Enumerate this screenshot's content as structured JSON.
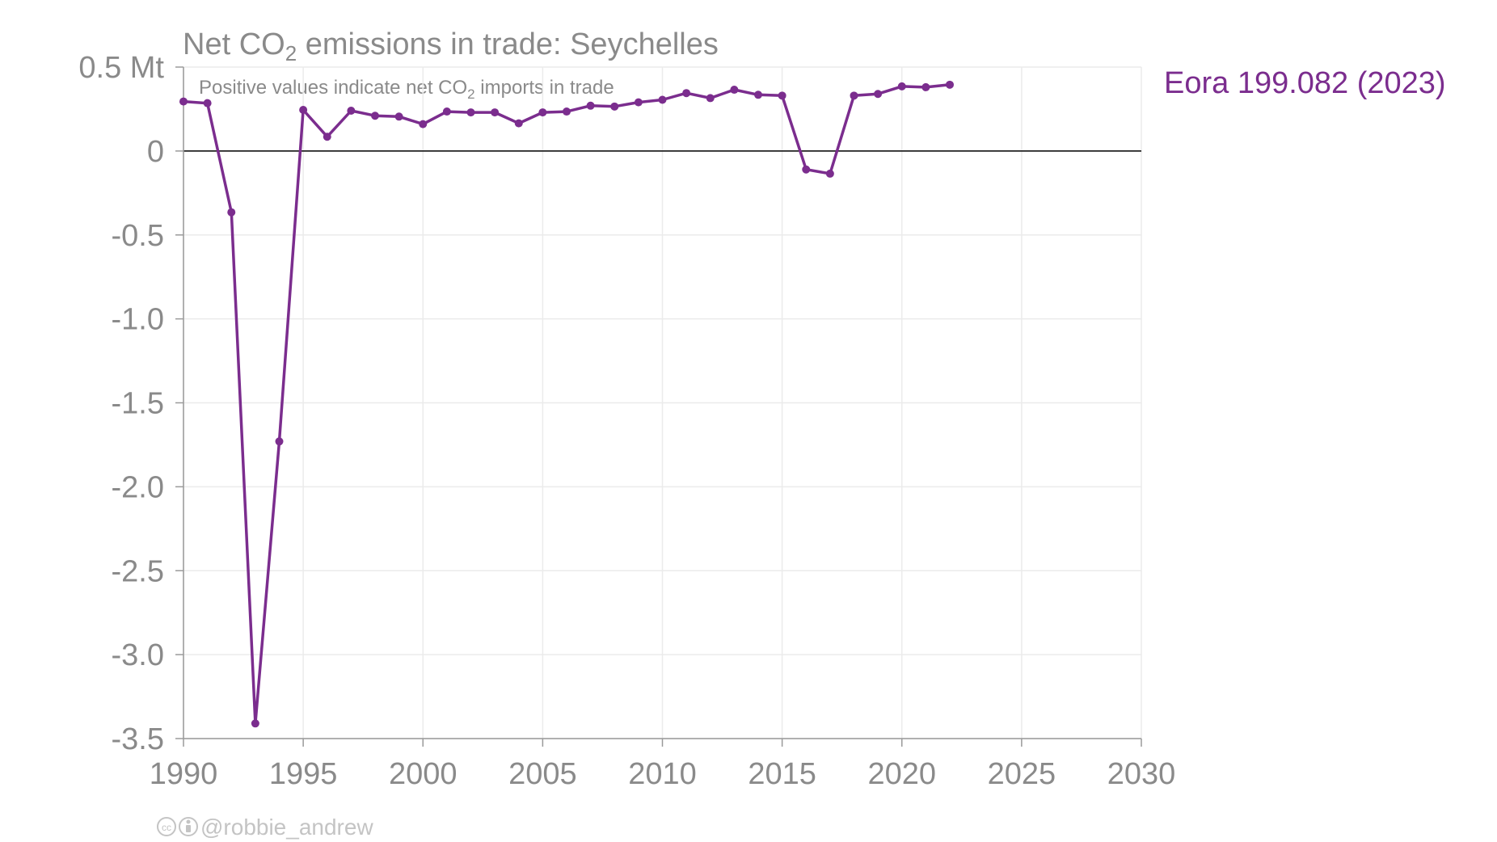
{
  "chart_data": {
    "type": "line",
    "title_main": "Net CO",
    "title_sub": "2",
    "title_rest": " emissions in trade: Seychelles",
    "subtitle_main": "Positive values indicate net CO",
    "subtitle_sub": "2",
    "subtitle_rest": " imports in trade",
    "y_unit_label": "0.5 Mt",
    "xlim": [
      1990,
      2030
    ],
    "ylim": [
      -3.5,
      0.5
    ],
    "x_ticks": [
      1990,
      1995,
      2000,
      2005,
      2010,
      2015,
      2020,
      2025,
      2030
    ],
    "y_ticks": [
      -3.5,
      -3.0,
      -2.5,
      -2.0,
      -1.5,
      -1.0,
      -0.5,
      0,
      0.5
    ],
    "y_tick_labels": [
      "-3.5",
      "-3.0",
      "-2.5",
      "-2.0",
      "-1.5",
      "-1.0",
      "-0.5",
      "0",
      "0.5 Mt"
    ],
    "series": [
      {
        "name": "Eora 199.082 (2023)",
        "color": "#7b2d8e",
        "x": [
          1990,
          1991,
          1992,
          1993,
          1994,
          1995,
          1996,
          1997,
          1998,
          1999,
          2000,
          2001,
          2002,
          2003,
          2004,
          2005,
          2006,
          2007,
          2008,
          2009,
          2010,
          2011,
          2012,
          2013,
          2014,
          2015,
          2016,
          2017,
          2018,
          2019,
          2020,
          2021,
          2022
        ],
        "values": [
          0.295,
          0.285,
          -0.365,
          -3.41,
          -1.73,
          0.245,
          0.085,
          0.24,
          0.21,
          0.205,
          0.16,
          0.235,
          0.23,
          0.23,
          0.165,
          0.23,
          0.235,
          0.27,
          0.265,
          0.29,
          0.305,
          0.345,
          0.315,
          0.365,
          0.335,
          0.33,
          -0.11,
          -0.135,
          0.33,
          0.34,
          0.385,
          0.38,
          0.395
        ]
      }
    ]
  },
  "legend": {
    "label": "Eora 199.082 (2023)"
  },
  "credit": {
    "text": "@robbie_andrew"
  },
  "colors": {
    "series": "#7b2d8e",
    "grid": "#ebebeb",
    "zero_line": "#000000",
    "axis_text": "#8a8a8a",
    "credit": "#c4c4c4"
  }
}
